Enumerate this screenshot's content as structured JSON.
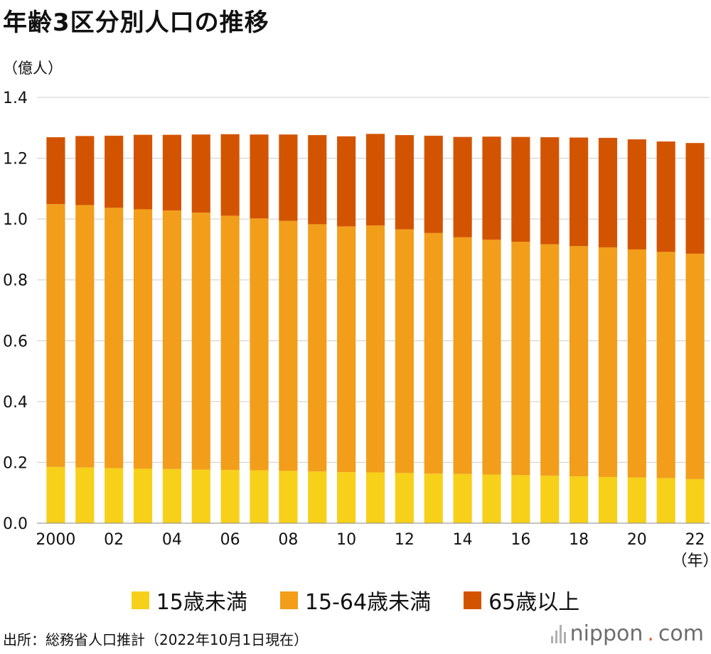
{
  "title": "年齢3区分別人口の推移",
  "unit_label": "（億人）",
  "x_unit_label": "（年）",
  "source": "出所：総務省人口推計（2022年10月1日現在）",
  "brand": {
    "name": "nippon",
    "dot": ".",
    "tld": "com"
  },
  "colors": {
    "under15": "#F7D01A",
    "age15to64": "#F29E1A",
    "over65": "#D35400",
    "grid": "#cccccc"
  },
  "chart_data": {
    "type": "bar",
    "stacked": true,
    "title": "年齢3区分別人口の推移",
    "xlabel": "（年）",
    "ylabel": "（億人）",
    "ylim": [
      0,
      1.4
    ],
    "yticks": [
      "0.0",
      "0.2",
      "0.4",
      "0.6",
      "0.8",
      "1.0",
      "1.2",
      "1.4"
    ],
    "categories": [
      "2000",
      "2001",
      "2002",
      "2003",
      "2004",
      "2005",
      "2006",
      "2007",
      "2008",
      "2009",
      "2010",
      "2011",
      "2012",
      "2013",
      "2014",
      "2015",
      "2016",
      "2017",
      "2018",
      "2019",
      "2020",
      "2021",
      "2022"
    ],
    "category_labels": [
      "2000",
      "",
      "02",
      "",
      "04",
      "",
      "06",
      "",
      "08",
      "",
      "10",
      "",
      "12",
      "",
      "14",
      "",
      "16",
      "",
      "18",
      "",
      "20",
      "",
      "22"
    ],
    "series": [
      {
        "name": "15歳未満",
        "color": "#F7D01A",
        "values": [
          0.185,
          0.183,
          0.181,
          0.179,
          0.178,
          0.176,
          0.175,
          0.174,
          0.172,
          0.17,
          0.168,
          0.167,
          0.165,
          0.163,
          0.162,
          0.16,
          0.158,
          0.156,
          0.154,
          0.152,
          0.15,
          0.148,
          0.145
        ]
      },
      {
        "name": "15-64歳未満",
        "color": "#F29E1A",
        "values": [
          0.864,
          0.863,
          0.856,
          0.853,
          0.85,
          0.845,
          0.836,
          0.828,
          0.822,
          0.813,
          0.808,
          0.812,
          0.801,
          0.791,
          0.778,
          0.772,
          0.767,
          0.761,
          0.757,
          0.755,
          0.75,
          0.744,
          0.741
        ]
      },
      {
        "name": "65歳以上",
        "color": "#D35400",
        "values": [
          0.22,
          0.227,
          0.237,
          0.245,
          0.249,
          0.257,
          0.268,
          0.276,
          0.284,
          0.293,
          0.296,
          0.301,
          0.31,
          0.32,
          0.33,
          0.339,
          0.345,
          0.352,
          0.357,
          0.36,
          0.362,
          0.363,
          0.364
        ]
      }
    ],
    "legend": [
      "15歳未満",
      "15-64歳未満",
      "65歳以上"
    ],
    "legend_position": "bottom",
    "grid": true
  }
}
